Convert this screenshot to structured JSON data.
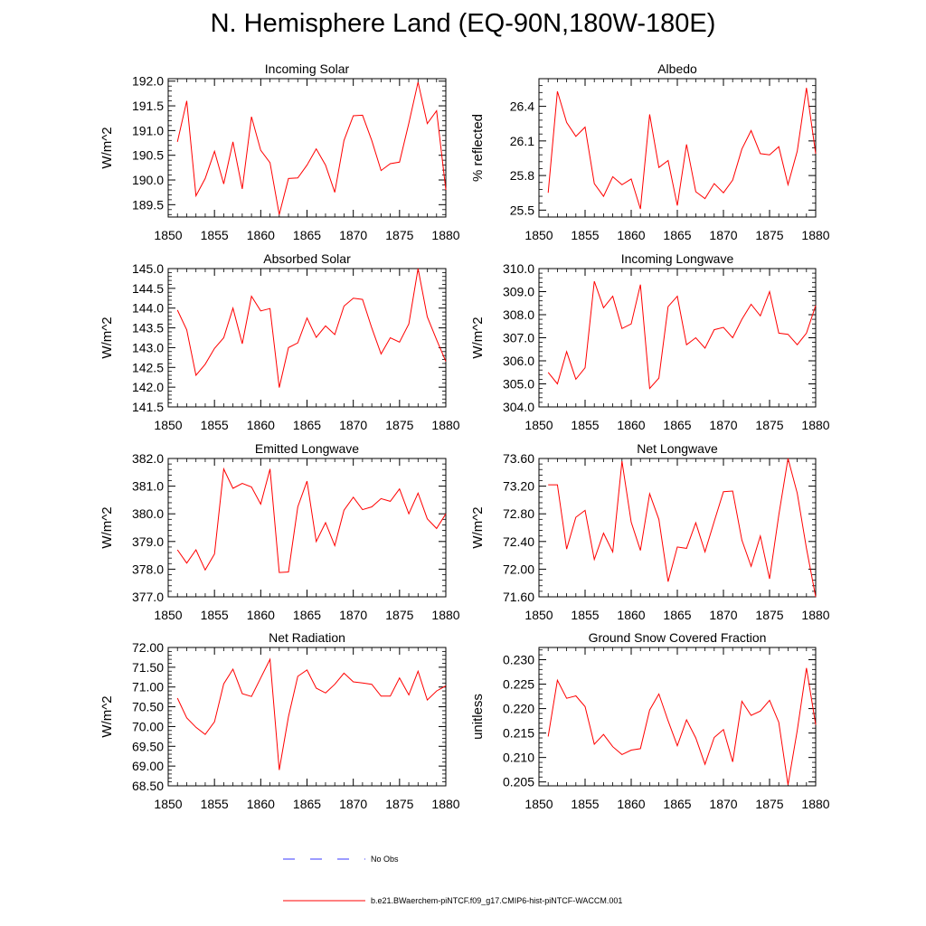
{
  "page_title": "N. Hemisphere Land (EQ-90N,180W-180E)",
  "legend": {
    "no_obs_label": "No Obs",
    "no_obs_color": "#3a3aff",
    "model_label": "b.e21.BWaerchem-piNTCF.f09_g17.CMIP6-hist-piNTCF-WACCM.001",
    "model_color": "#ff0000"
  },
  "chart_data": [
    {
      "type": "line",
      "title": "Incoming Solar",
      "ylabel": "W/m^2",
      "xlim": [
        1850,
        1880
      ],
      "ylim": [
        189.25,
        192.05
      ],
      "xticks": [
        1850,
        1855,
        1860,
        1865,
        1870,
        1875,
        1880
      ],
      "yticks": [
        189.5,
        190.0,
        190.5,
        191.0,
        191.5,
        192.0
      ],
      "ytick_labels": [
        "189.5",
        "190.0",
        "190.5",
        "191.0",
        "191.5",
        "192.0"
      ],
      "series": [
        {
          "x": [
            1851,
            1852,
            1853,
            1854,
            1855,
            1856,
            1857,
            1858,
            1859,
            1860,
            1861,
            1862,
            1863,
            1864,
            1865,
            1866,
            1867,
            1868,
            1869,
            1870,
            1871,
            1872,
            1873,
            1874,
            1875,
            1876,
            1877,
            1878,
            1879,
            1880
          ],
          "values": [
            190.77,
            191.6,
            189.68,
            190.03,
            190.58,
            189.92,
            190.77,
            189.82,
            191.28,
            190.6,
            190.35,
            189.3,
            190.03,
            190.04,
            190.3,
            190.63,
            190.3,
            189.75,
            190.8,
            191.3,
            191.31,
            190.8,
            190.19,
            190.33,
            190.36,
            191.15,
            191.98,
            191.14,
            191.4,
            189.8
          ]
        }
      ]
    },
    {
      "type": "line",
      "title": "Albedo",
      "ylabel": "% reflected",
      "xlim": [
        1850,
        1880
      ],
      "ylim": [
        25.44,
        26.64
      ],
      "xticks": [
        1850,
        1855,
        1860,
        1865,
        1870,
        1875,
        1880
      ],
      "yticks": [
        25.5,
        25.8,
        26.1,
        26.4
      ],
      "ytick_labels": [
        "25.5",
        "25.8",
        "26.1",
        "26.4"
      ],
      "series": [
        {
          "x": [
            1851,
            1852,
            1853,
            1854,
            1855,
            1856,
            1857,
            1858,
            1859,
            1860,
            1861,
            1862,
            1863,
            1864,
            1865,
            1866,
            1867,
            1868,
            1869,
            1870,
            1871,
            1872,
            1873,
            1874,
            1875,
            1876,
            1877,
            1878,
            1879,
            1880
          ],
          "values": [
            25.65,
            26.53,
            26.26,
            26.14,
            26.22,
            25.73,
            25.62,
            25.79,
            25.72,
            25.77,
            25.51,
            26.33,
            25.87,
            25.93,
            25.54,
            26.07,
            25.66,
            25.6,
            25.73,
            25.65,
            25.76,
            26.03,
            26.19,
            25.99,
            25.98,
            26.05,
            25.72,
            26.01,
            26.56,
            25.99
          ]
        }
      ]
    },
    {
      "type": "line",
      "title": "Absorbed Solar",
      "ylabel": "W/m^2",
      "xlim": [
        1850,
        1880
      ],
      "ylim": [
        141.5,
        145.0
      ],
      "xticks": [
        1850,
        1855,
        1860,
        1865,
        1870,
        1875,
        1880
      ],
      "yticks": [
        141.5,
        142.0,
        142.5,
        143.0,
        143.5,
        144.0,
        144.5,
        145.0
      ],
      "ytick_labels": [
        "141.5",
        "142.0",
        "142.5",
        "143.0",
        "143.5",
        "144.0",
        "144.5",
        "145.0"
      ],
      "series": [
        {
          "x": [
            1851,
            1852,
            1853,
            1854,
            1855,
            1856,
            1857,
            1858,
            1859,
            1860,
            1861,
            1862,
            1863,
            1864,
            1865,
            1866,
            1867,
            1868,
            1869,
            1870,
            1871,
            1872,
            1873,
            1874,
            1875,
            1876,
            1877,
            1878,
            1879,
            1880
          ],
          "values": [
            143.95,
            143.45,
            142.3,
            142.58,
            142.98,
            143.25,
            144.0,
            143.1,
            144.3,
            143.93,
            143.99,
            141.99,
            143.0,
            143.12,
            143.75,
            143.26,
            143.55,
            143.33,
            144.05,
            144.25,
            144.22,
            143.5,
            142.84,
            143.25,
            143.14,
            143.6,
            145.0,
            143.78,
            143.2,
            142.65
          ]
        }
      ]
    },
    {
      "type": "line",
      "title": "Incoming Longwave",
      "ylabel": "W/m^2",
      "xlim": [
        1850,
        1880
      ],
      "ylim": [
        304.0,
        310.0
      ],
      "xticks": [
        1850,
        1855,
        1860,
        1865,
        1870,
        1875,
        1880
      ],
      "yticks": [
        304.0,
        305.0,
        306.0,
        307.0,
        308.0,
        309.0,
        310.0
      ],
      "ytick_labels": [
        "304.0",
        "305.0",
        "306.0",
        "307.0",
        "308.0",
        "309.0",
        "310.0"
      ],
      "series": [
        {
          "x": [
            1851,
            1852,
            1853,
            1854,
            1855,
            1856,
            1857,
            1858,
            1859,
            1860,
            1861,
            1862,
            1863,
            1864,
            1865,
            1866,
            1867,
            1868,
            1869,
            1870,
            1871,
            1872,
            1873,
            1874,
            1875,
            1876,
            1877,
            1878,
            1879,
            1880
          ],
          "values": [
            305.5,
            305.0,
            306.4,
            305.2,
            305.7,
            309.45,
            308.3,
            308.8,
            307.4,
            307.6,
            309.3,
            304.8,
            305.25,
            308.35,
            308.8,
            306.7,
            307.0,
            306.55,
            307.35,
            307.45,
            307.0,
            307.8,
            308.45,
            307.95,
            309.0,
            307.2,
            307.15,
            306.7,
            307.2,
            308.4
          ]
        }
      ]
    },
    {
      "type": "line",
      "title": "Emitted Longwave",
      "ylabel": "W/m^2",
      "xlim": [
        1850,
        1880
      ],
      "ylim": [
        377.0,
        382.0
      ],
      "xticks": [
        1850,
        1855,
        1860,
        1865,
        1870,
        1875,
        1880
      ],
      "yticks": [
        377.0,
        378.0,
        379.0,
        380.0,
        381.0,
        382.0
      ],
      "ytick_labels": [
        "377.0",
        "378.0",
        "379.0",
        "380.0",
        "381.0",
        "382.0"
      ],
      "series": [
        {
          "x": [
            1851,
            1852,
            1853,
            1854,
            1855,
            1856,
            1857,
            1858,
            1859,
            1860,
            1861,
            1862,
            1863,
            1864,
            1865,
            1866,
            1867,
            1868,
            1869,
            1870,
            1871,
            1872,
            1873,
            1874,
            1875,
            1876,
            1877,
            1878,
            1879,
            1880
          ],
          "values": [
            378.7,
            378.22,
            378.7,
            377.97,
            378.55,
            381.62,
            380.92,
            381.1,
            380.97,
            380.35,
            381.62,
            377.88,
            377.9,
            380.25,
            381.18,
            379.0,
            379.68,
            378.85,
            380.13,
            380.6,
            380.15,
            380.25,
            380.55,
            380.45,
            380.9,
            380.0,
            380.75,
            379.82,
            379.47,
            380.0
          ]
        }
      ]
    },
    {
      "type": "line",
      "title": "Net Longwave",
      "ylabel": "W/m^2",
      "xlim": [
        1850,
        1880
      ],
      "ylim": [
        71.6,
        73.6
      ],
      "xticks": [
        1850,
        1855,
        1860,
        1865,
        1870,
        1875,
        1880
      ],
      "yticks": [
        71.6,
        72.0,
        72.4,
        72.8,
        73.2,
        73.6
      ],
      "ytick_labels": [
        "71.60",
        "72.00",
        "72.40",
        "72.80",
        "73.20",
        "73.60"
      ],
      "series": [
        {
          "x": [
            1851,
            1852,
            1853,
            1854,
            1855,
            1856,
            1857,
            1858,
            1859,
            1860,
            1861,
            1862,
            1863,
            1864,
            1865,
            1866,
            1867,
            1868,
            1869,
            1870,
            1871,
            1872,
            1873,
            1874,
            1875,
            1876,
            1877,
            1878,
            1879,
            1880
          ],
          "values": [
            73.22,
            73.22,
            72.29,
            72.75,
            72.85,
            72.14,
            72.52,
            72.25,
            73.56,
            72.68,
            72.27,
            73.09,
            72.72,
            71.82,
            72.32,
            72.3,
            72.67,
            72.25,
            72.69,
            73.12,
            73.13,
            72.42,
            72.04,
            72.48,
            71.86,
            72.78,
            73.6,
            73.1,
            72.3,
            71.6
          ]
        }
      ]
    },
    {
      "type": "line",
      "title": "Net Radiation",
      "ylabel": "W/m^2",
      "xlim": [
        1850,
        1880
      ],
      "ylim": [
        68.5,
        72.0
      ],
      "xticks": [
        1850,
        1855,
        1860,
        1865,
        1870,
        1875,
        1880
      ],
      "yticks": [
        68.5,
        69.0,
        69.5,
        70.0,
        70.5,
        71.0,
        71.5,
        72.0
      ],
      "ytick_labels": [
        "68.50",
        "69.00",
        "69.50",
        "70.00",
        "70.50",
        "71.00",
        "71.50",
        "72.00"
      ],
      "series": [
        {
          "x": [
            1851,
            1852,
            1853,
            1854,
            1855,
            1856,
            1857,
            1858,
            1859,
            1860,
            1861,
            1862,
            1863,
            1864,
            1865,
            1866,
            1867,
            1868,
            1869,
            1870,
            1871,
            1872,
            1873,
            1874,
            1875,
            1876,
            1877,
            1878,
            1879,
            1880
          ],
          "values": [
            70.72,
            70.22,
            69.98,
            69.8,
            70.12,
            71.08,
            71.45,
            70.83,
            70.76,
            71.23,
            71.7,
            68.9,
            70.25,
            71.27,
            71.43,
            70.97,
            70.85,
            71.07,
            71.35,
            71.13,
            71.1,
            71.07,
            70.77,
            70.77,
            71.23,
            70.8,
            71.4,
            70.67,
            70.9,
            71.03
          ]
        }
      ]
    },
    {
      "type": "line",
      "title": "Ground Snow Covered Fraction",
      "ylabel": "unitless",
      "xlim": [
        1850,
        1880
      ],
      "ylim": [
        0.2042,
        0.2325
      ],
      "xticks": [
        1850,
        1855,
        1860,
        1865,
        1870,
        1875,
        1880
      ],
      "yticks": [
        0.205,
        0.21,
        0.215,
        0.22,
        0.225,
        0.23
      ],
      "ytick_labels": [
        "0.205",
        "0.210",
        "0.215",
        "0.220",
        "0.225",
        "0.230"
      ],
      "series": [
        {
          "x": [
            1851,
            1852,
            1853,
            1854,
            1855,
            1856,
            1857,
            1858,
            1859,
            1860,
            1861,
            1862,
            1863,
            1864,
            1865,
            1866,
            1867,
            1868,
            1869,
            1870,
            1871,
            1872,
            1873,
            1874,
            1875,
            1876,
            1877,
            1878,
            1879,
            1880
          ],
          "values": [
            0.2143,
            0.2258,
            0.2221,
            0.2226,
            0.2204,
            0.2127,
            0.2147,
            0.2122,
            0.2106,
            0.2115,
            0.2118,
            0.2197,
            0.223,
            0.2175,
            0.2124,
            0.2177,
            0.214,
            0.2086,
            0.2141,
            0.2157,
            0.2091,
            0.2215,
            0.2186,
            0.2195,
            0.2217,
            0.2172,
            0.2044,
            0.2155,
            0.2283,
            0.2167
          ]
        }
      ]
    }
  ]
}
